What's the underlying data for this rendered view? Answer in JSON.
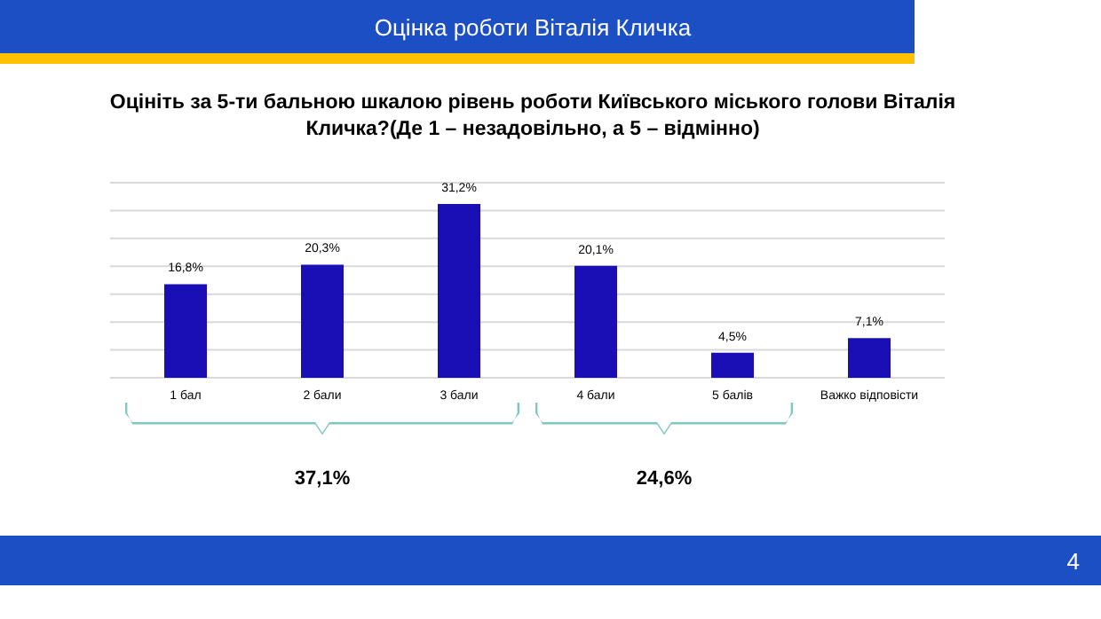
{
  "chart_data": {
    "type": "bar",
    "title": "Оцінка роботи Віталія Кличка",
    "subtitle": "Оцініть за 5-ти бальною шкалою рівень роботи Київського міського голови Віталія Кличка?(Де 1 – незадовільно, а 5 – відмінно)",
    "categories": [
      "1 бал",
      "2 бали",
      "3 бали",
      "4 бали",
      "5 балів",
      "Важко відповісти"
    ],
    "values": [
      16.8,
      20.3,
      31.2,
      20.1,
      4.5,
      7.1
    ],
    "color": "#1a0fb5",
    "value_labels": [
      "16,8%",
      "20,3%",
      "31,2%",
      "20,1%",
      "4,5%",
      "7,1%"
    ],
    "ylim": [
      0,
      35
    ],
    "yticks": [
      {
        "value": 0,
        "label": null
      },
      {
        "value": 5,
        "label": null
      },
      {
        "value": 10,
        "label": null
      },
      {
        "value": 15,
        "label": null
      },
      {
        "value": 20,
        "label": null
      },
      {
        "value": 25,
        "label": null
      },
      {
        "value": 30,
        "label": null
      },
      {
        "value": 35,
        "label": null
      }
    ],
    "grid": "y",
    "tick_labels": "x",
    "annotations": [
      "37,1%",
      "24,6%",
      "4"
    ]
  }
}
